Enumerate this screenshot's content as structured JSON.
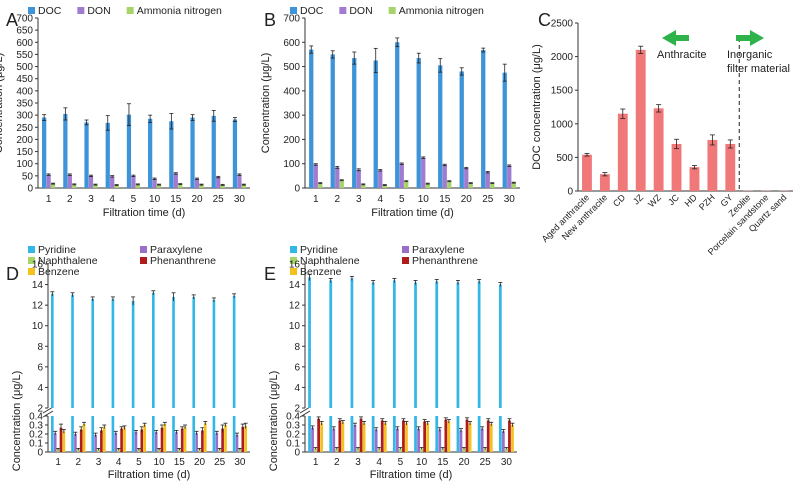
{
  "colors": {
    "doc": "#3e94d8",
    "don": "#a07bd0",
    "ammonia": "#a6d46a",
    "pyridine": "#33b7e6",
    "paraxylene": "#9a6ecb",
    "naphthalene": "#a6d46a",
    "phenanthrene": "#b01c1c",
    "benzene": "#f5c21d",
    "panelc_bar": "#f07878",
    "arrow": "#2db34a"
  },
  "panels": {
    "A": {
      "label": "A"
    },
    "B": {
      "label": "B"
    },
    "C": {
      "label": "C",
      "left_annotation": "Anthracite",
      "right_annotation": [
        "Inorganic",
        "filter material"
      ]
    },
    "D": {
      "label": "D"
    },
    "E": {
      "label": "E"
    }
  },
  "chart_data": [
    {
      "panel": "A",
      "type": "bar",
      "categories": [
        "1",
        "2",
        "3",
        "4",
        "5",
        "10",
        "15",
        "20",
        "25",
        "30"
      ],
      "xlabel": "Filtration time (d)",
      "ylabel": "Concentration (μg/L)",
      "ylim": [
        0,
        700
      ],
      "yticks": [
        0,
        50,
        100,
        150,
        200,
        250,
        300,
        350,
        400,
        450,
        500,
        550,
        600,
        650,
        700
      ],
      "legend_position": "top",
      "series": [
        {
          "name": "DOC",
          "values": [
            290,
            305,
            270,
            268,
            302,
            285,
            275,
            290,
            297,
            282
          ],
          "errors": [
            12,
            25,
            10,
            30,
            45,
            15,
            32,
            12,
            22,
            8
          ]
        },
        {
          "name": "DON",
          "values": [
            55,
            55,
            50,
            48,
            50,
            38,
            60,
            38,
            45,
            55
          ],
          "errors": [
            3,
            3,
            3,
            3,
            3,
            3,
            3,
            3,
            3,
            3
          ]
        },
        {
          "name": "Ammonia nitrogen",
          "values": [
            18,
            15,
            14,
            12,
            15,
            14,
            16,
            14,
            13,
            14
          ],
          "errors": [
            2,
            2,
            2,
            2,
            2,
            2,
            2,
            2,
            2,
            2
          ]
        }
      ]
    },
    {
      "panel": "B",
      "type": "bar",
      "categories": [
        "1",
        "2",
        "3",
        "4",
        "5",
        "10",
        "15",
        "20",
        "25",
        "30"
      ],
      "xlabel": "Filtration time (d)",
      "ylabel": "Concentration (μg/L)",
      "ylim": [
        0,
        700
      ],
      "yticks": [
        0,
        100,
        200,
        300,
        400,
        500,
        600,
        700
      ],
      "legend_position": "top",
      "series": [
        {
          "name": "DOC",
          "values": [
            570,
            550,
            535,
            525,
            600,
            535,
            505,
            480,
            568,
            475
          ],
          "errors": [
            15,
            15,
            25,
            50,
            18,
            20,
            28,
            15,
            8,
            35
          ]
        },
        {
          "name": "DON",
          "values": [
            97,
            85,
            75,
            73,
            100,
            125,
            95,
            82,
            65,
            92
          ],
          "errors": [
            3,
            4,
            4,
            3,
            3,
            3,
            3,
            3,
            3,
            3
          ]
        },
        {
          "name": "Ammonia nitrogen",
          "values": [
            20,
            32,
            15,
            12,
            28,
            18,
            28,
            20,
            20,
            22
          ],
          "errors": [
            2,
            2,
            2,
            2,
            2,
            2,
            2,
            2,
            2,
            2
          ]
        }
      ]
    },
    {
      "panel": "C",
      "type": "bar",
      "categories": [
        "Aged anthracite",
        "New anthracite",
        "CD",
        "JZ",
        "WZ",
        "JC",
        "HD",
        "PZH",
        "GY",
        "Zeolite",
        "Porcelain sandstone",
        "Quartz sand"
      ],
      "ylabel": "DOC concentration (μg/L)",
      "ylim": [
        0,
        2500
      ],
      "yticks": [
        0,
        500,
        1000,
        1500,
        2000,
        2500
      ],
      "values": [
        540,
        250,
        1150,
        2100,
        1230,
        700,
        355,
        760,
        700,
        5,
        5,
        5
      ],
      "errors": [
        20,
        25,
        70,
        55,
        55,
        70,
        25,
        75,
        60,
        0,
        0,
        0
      ]
    },
    {
      "panel": "D",
      "type": "bar",
      "categories": [
        "1",
        "2",
        "3",
        "4",
        "5",
        "10",
        "15",
        "20",
        "25",
        "30"
      ],
      "xlabel": "Filtration time (d)",
      "ylabel": "Concentration (μg/L)",
      "y_broken": true,
      "ylim_lower": [
        0,
        0.4
      ],
      "ylim_upper": [
        2,
        16
      ],
      "yticks_lower": [
        "0",
        "0.1",
        "0.2",
        "0.3",
        "0.4"
      ],
      "yticks_upper": [
        "2",
        "4",
        "6",
        "8",
        "10",
        "12",
        "14",
        "16"
      ],
      "legend_position": "top",
      "series": [
        {
          "name": "Pyridine",
          "values": [
            13.1,
            13.0,
            12.6,
            12.6,
            12.4,
            13.2,
            12.8,
            12.8,
            12.5,
            12.9
          ],
          "errors": [
            0.2,
            0.2,
            0.2,
            0.2,
            0.4,
            0.2,
            0.4,
            0.2,
            0.2,
            0.2
          ]
        },
        {
          "name": "Paraxylene",
          "values": [
            0.21,
            0.2,
            0.19,
            0.21,
            0.22,
            0.22,
            0.22,
            0.21,
            0.21,
            0.19
          ],
          "errors": [
            0.02,
            0.02,
            0.02,
            0.02,
            0.02,
            0.02,
            0.02,
            0.02,
            0.02,
            0.02
          ]
        },
        {
          "name": "Naphthalene",
          "values": [
            0.03,
            0.03,
            0.03,
            0.03,
            0.03,
            0.03,
            0.03,
            0.03,
            0.03,
            0.03
          ],
          "errors": [
            0.01,
            0.01,
            0.01,
            0.01,
            0.01,
            0.01,
            0.01,
            0.01,
            0.01,
            0.01
          ]
        },
        {
          "name": "Phenanthrene",
          "values": [
            0.27,
            0.25,
            0.24,
            0.26,
            0.25,
            0.27,
            0.26,
            0.24,
            0.26,
            0.28
          ],
          "errors": [
            0.04,
            0.03,
            0.03,
            0.02,
            0.03,
            0.03,
            0.02,
            0.03,
            0.04,
            0.03
          ]
        },
        {
          "name": "Benzene",
          "values": [
            0.23,
            0.31,
            0.28,
            0.27,
            0.3,
            0.31,
            0.28,
            0.32,
            0.3,
            0.29
          ],
          "errors": [
            0.02,
            0.02,
            0.02,
            0.02,
            0.02,
            0.02,
            0.02,
            0.02,
            0.02,
            0.03
          ]
        }
      ]
    },
    {
      "panel": "E",
      "type": "bar",
      "categories": [
        "1",
        "2",
        "3",
        "4",
        "5",
        "10",
        "15",
        "20",
        "25",
        "30"
      ],
      "xlabel": "Filtration time (d)",
      "ylabel": "Concentration (μg/L)",
      "y_broken": true,
      "ylim_lower": [
        0,
        0.4
      ],
      "ylim_upper": [
        2,
        16
      ],
      "yticks_lower": [
        "0",
        "0.1",
        "0.2",
        "0.3",
        "0.4"
      ],
      "yticks_upper": [
        "2",
        "4",
        "6",
        "8",
        "10",
        "12",
        "14",
        "16"
      ],
      "legend_position": "top",
      "series": [
        {
          "name": "Pyridine",
          "values": [
            14.7,
            14.4,
            14.6,
            14.2,
            14.4,
            14.2,
            14.3,
            14.2,
            14.3,
            14.0
          ],
          "errors": [
            0.3,
            0.2,
            0.2,
            0.2,
            0.2,
            0.2,
            0.2,
            0.2,
            0.2,
            0.2
          ]
        },
        {
          "name": "Paraxylene",
          "values": [
            0.27,
            0.26,
            0.3,
            0.25,
            0.26,
            0.26,
            0.25,
            0.24,
            0.26,
            0.23
          ],
          "errors": [
            0.02,
            0.02,
            0.02,
            0.02,
            0.02,
            0.02,
            0.02,
            0.02,
            0.02,
            0.02
          ]
        },
        {
          "name": "Naphthalene",
          "values": [
            0.04,
            0.04,
            0.04,
            0.04,
            0.04,
            0.04,
            0.04,
            0.04,
            0.04,
            0.04
          ],
          "errors": [
            0.01,
            0.01,
            0.01,
            0.01,
            0.01,
            0.01,
            0.01,
            0.01,
            0.01,
            0.01
          ]
        },
        {
          "name": "Phenanthrene",
          "values": [
            0.37,
            0.35,
            0.37,
            0.35,
            0.35,
            0.34,
            0.36,
            0.36,
            0.35,
            0.35
          ],
          "errors": [
            0.02,
            0.02,
            0.02,
            0.02,
            0.02,
            0.02,
            0.02,
            0.02,
            0.02,
            0.02
          ]
        },
        {
          "name": "Benzene",
          "values": [
            0.32,
            0.33,
            0.32,
            0.32,
            0.32,
            0.32,
            0.34,
            0.32,
            0.31,
            0.3
          ],
          "errors": [
            0.02,
            0.02,
            0.02,
            0.02,
            0.02,
            0.02,
            0.02,
            0.02,
            0.02,
            0.02
          ]
        }
      ]
    }
  ]
}
